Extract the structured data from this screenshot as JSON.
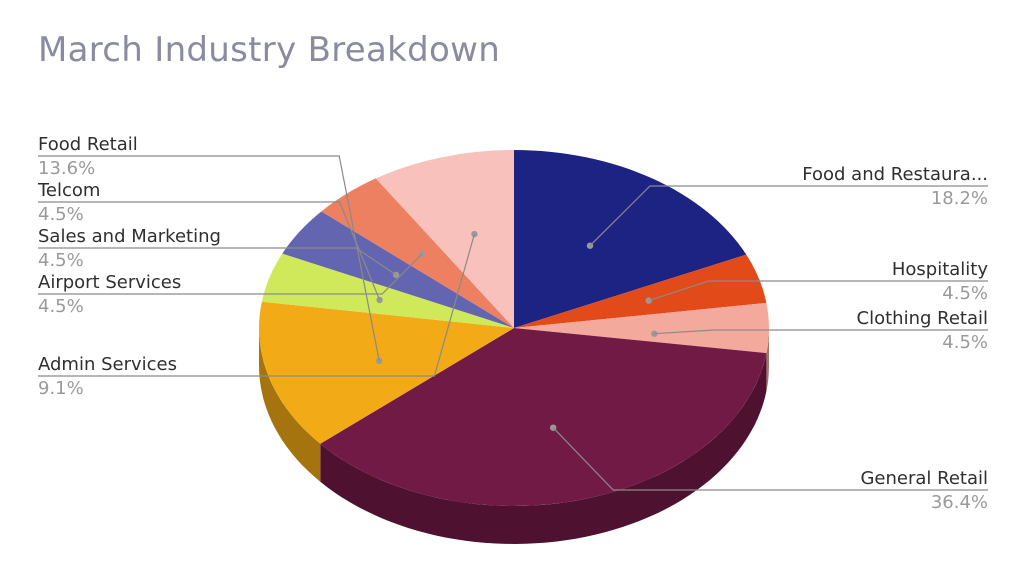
{
  "chart_data": {
    "type": "pie",
    "style": "3d",
    "title": "March Industry Breakdown",
    "legend": "none",
    "slices": [
      {
        "label": "Food and Restaura...",
        "value": 18.2,
        "pct_label": "18.2%",
        "color": "#1d2383"
      },
      {
        "label": "Hospitality",
        "value": 4.5,
        "pct_label": "4.5%",
        "color": "#e34a1a"
      },
      {
        "label": "Clothing Retail",
        "value": 4.5,
        "pct_label": "4.5%",
        "color": "#f3a99b"
      },
      {
        "label": "General Retail",
        "value": 36.4,
        "pct_label": "36.4%",
        "color": "#721a46"
      },
      {
        "label": "Food Retail",
        "value": 13.6,
        "pct_label": "13.6%",
        "color": "#f2aa16"
      },
      {
        "label": "Telcom",
        "value": 4.5,
        "pct_label": "4.5%",
        "color": "#cfe95a"
      },
      {
        "label": "Sales and Marketing",
        "value": 4.5,
        "pct_label": "4.5%",
        "color": "#6465b0"
      },
      {
        "label": "Airport Services",
        "value": 4.5,
        "pct_label": "4.5%",
        "color": "#ed8060"
      },
      {
        "label": "Admin Services",
        "value": 9.1,
        "pct_label": "9.1%",
        "color": "#f8c1bc"
      }
    ]
  }
}
